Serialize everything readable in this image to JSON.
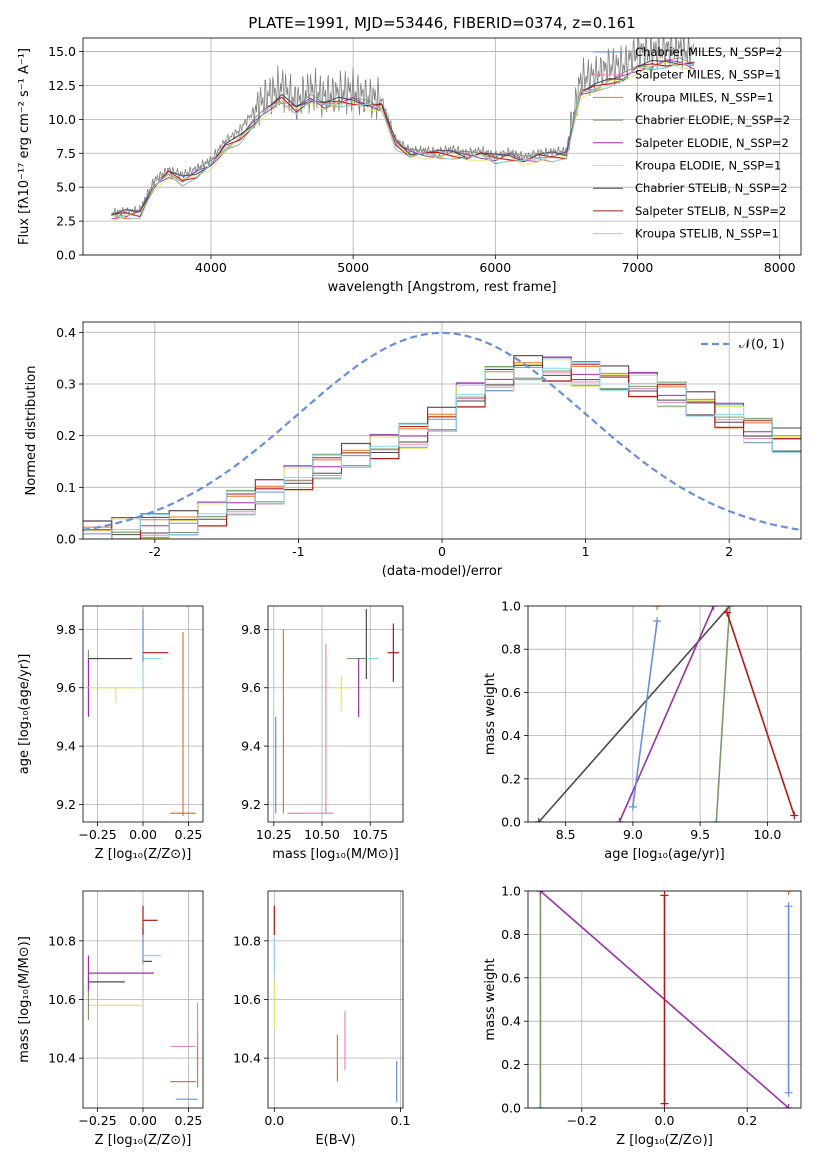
{
  "figure": {
    "title": "PLATE=1991, MJD=53446, FIBERID=0374, z=0.161"
  },
  "colors": {
    "grid": "#b0b0b0",
    "data": "#808080",
    "chabrier_miles": "#6a8fd8",
    "salpeter_miles": "#e888b8",
    "kroupa_miles": "#e8742a",
    "chabrier_elodie": "#7a9a6a",
    "salpeter_elodie": "#9a30a8",
    "kroupa_elodie": "#e0e860",
    "chabrier_stelib": "#4a4a4a",
    "salpeter_stelib": "#b01818",
    "kroupa_stelib": "#88d8e8",
    "normal_curve": "#6a8fd8"
  },
  "chart_data": [
    {
      "id": "spectrum",
      "type": "line",
      "title": "PLATE=1991, MJD=53446, FIBERID=0374, z=0.161",
      "xlabel": "wavelength [Angstrom, rest frame]",
      "ylabel": "Flux [fλ10⁻¹⁷ erg cm⁻² s⁻¹ A⁻¹]",
      "xlim": [
        3100,
        8150
      ],
      "ylim": [
        0,
        16
      ],
      "xticks": [
        4000,
        5000,
        6000,
        7000,
        8000
      ],
      "yticks": [
        0.0,
        2.5,
        5.0,
        7.5,
        10.0,
        12.5,
        15.0
      ],
      "ytick_labels": [
        "0.0",
        "2.5",
        "5.0",
        "7.5",
        "10.0",
        "12.5",
        "15.0"
      ],
      "grid": true,
      "legend": "top-right",
      "x": [
        3300,
        3400,
        3500,
        3600,
        3700,
        3800,
        3900,
        4000,
        4100,
        4200,
        4300,
        4400,
        4500,
        4600,
        4700,
        4800,
        4900,
        5000,
        5100,
        5200,
        5300,
        5400,
        5500,
        5600,
        5700,
        5800,
        5900,
        6000,
        6100,
        6200,
        6300,
        6400,
        6500,
        6600,
        6700,
        6800,
        6900,
        7000,
        7100,
        7200,
        7300,
        7400
      ],
      "data_flux": [
        3.1,
        3.2,
        3.3,
        5.5,
        6.3,
        5.9,
        6.4,
        7.0,
        8.4,
        9.2,
        10.6,
        11.8,
        12.4,
        11.3,
        12.2,
        11.7,
        12.0,
        12.1,
        11.6,
        11.5,
        8.5,
        7.7,
        7.7,
        7.6,
        7.8,
        7.5,
        7.7,
        7.3,
        7.6,
        7.2,
        7.5,
        7.6,
        7.7,
        13.0,
        13.3,
        13.9,
        14.0,
        15.0,
        15.0,
        15.2,
        15.2,
        14.8
      ],
      "model_flux": [
        3.0,
        3.1,
        3.2,
        5.2,
        6.1,
        5.6,
        6.1,
        6.8,
        8.0,
        8.7,
        9.8,
        10.9,
        11.6,
        10.9,
        11.6,
        11.2,
        11.4,
        11.5,
        11.2,
        11.0,
        8.3,
        7.6,
        7.6,
        7.5,
        7.6,
        7.4,
        7.5,
        7.2,
        7.4,
        7.1,
        7.3,
        7.4,
        7.5,
        12.1,
        12.4,
        12.9,
        13.2,
        13.9,
        14.1,
        14.3,
        14.3,
        14.1
      ],
      "series": [
        {
          "name": "Chabrier MILES, N_SSP=2"
        },
        {
          "name": "Salpeter MILES, N_SSP=1"
        },
        {
          "name": "Kroupa MILES, N_SSP=1"
        },
        {
          "name": "Chabrier ELODIE, N_SSP=2"
        },
        {
          "name": "Salpeter ELODIE, N_SSP=2"
        },
        {
          "name": "Kroupa ELODIE, N_SSP=1"
        },
        {
          "name": "Chabrier STELIB, N_SSP=2"
        },
        {
          "name": "Salpeter STELIB, N_SSP=2"
        },
        {
          "name": "Kroupa STELIB, N_SSP=1"
        }
      ]
    },
    {
      "id": "residuals",
      "type": "line",
      "xlabel": "(data-model)/error",
      "ylabel": "Normed distribution",
      "xlim": [
        -2.5,
        2.5
      ],
      "ylim": [
        0,
        0.42
      ],
      "xticks": [
        -2,
        -1,
        0,
        1,
        2
      ],
      "yticks": [
        0.0,
        0.1,
        0.2,
        0.3,
        0.4
      ],
      "ytick_labels": [
        "0.0",
        "0.1",
        "0.2",
        "0.3",
        "0.4"
      ],
      "grid": true,
      "legend": "top-right",
      "curve_label": "𝒩(0, 1)",
      "bin_edges": [
        -2.5,
        -2.3,
        -2.1,
        -1.9,
        -1.7,
        -1.5,
        -1.3,
        -1.1,
        -0.9,
        -0.7,
        -0.5,
        -0.3,
        -0.1,
        0.1,
        0.3,
        0.5,
        0.7,
        0.9,
        1.1,
        1.3,
        1.5,
        1.7,
        1.9,
        2.1,
        2.3,
        2.5
      ],
      "histogram_mean": [
        0.01,
        0.02,
        0.025,
        0.03,
        0.05,
        0.07,
        0.09,
        0.12,
        0.14,
        0.16,
        0.18,
        0.2,
        0.23,
        0.28,
        0.31,
        0.33,
        0.33,
        0.32,
        0.31,
        0.3,
        0.28,
        0.26,
        0.24,
        0.21,
        0.19
      ]
    },
    {
      "id": "age-vs-Z",
      "type": "scatter",
      "xlabel": "Z [log₁₀(Z/Z⊙)]",
      "ylabel": "age  [log₁₀(age/yr)]",
      "xlim": [
        -0.33,
        0.33
      ],
      "ylim": [
        9.14,
        9.88
      ],
      "xticks": [
        -0.25,
        0.0,
        0.25
      ],
      "xtick_labels": [
        "−0.25",
        "0.00",
        "0.25"
      ],
      "yticks": [
        9.2,
        9.4,
        9.6,
        9.8
      ],
      "ytick_labels": [
        "9.2",
        "9.4",
        "9.6",
        "9.8"
      ],
      "grid": true,
      "points": [
        {
          "s": "kroupa_miles",
          "x": 0.22,
          "y": 9.17,
          "xerr": [
            0.07,
            0.07
          ],
          "yerr": [
            0.01,
            0.62
          ]
        },
        {
          "s": "chabrier_elodie",
          "x": -0.3,
          "y": 9.7,
          "xerr": [
            0.0,
            0.06
          ],
          "yerr": [
            0.02,
            0.03
          ]
        },
        {
          "s": "chabrier_stelib",
          "x": -0.18,
          "y": 9.7,
          "xerr": [
            0.12,
            0.12
          ],
          "yerr": [
            0.0,
            0.0
          ]
        },
        {
          "s": "salpeter_elodie",
          "x": -0.3,
          "y": 9.6,
          "xerr": [
            0.0,
            0.0
          ],
          "yerr": [
            0.1,
            0.1
          ]
        },
        {
          "s": "kroupa_elodie",
          "x": -0.15,
          "y": 9.6,
          "xerr": [
            0.15,
            0.15
          ],
          "yerr": [
            0.05,
            0.0
          ]
        },
        {
          "s": "kroupa_stelib",
          "x": 0.0,
          "y": 9.7,
          "xerr": [
            0.0,
            0.1
          ],
          "yerr": [
            0.1,
            0.13
          ]
        },
        {
          "s": "chabrier_miles",
          "x": 0.0,
          "y": 9.72,
          "xerr": [
            0.0,
            0.0
          ],
          "yerr": [
            0.03,
            0.15
          ]
        },
        {
          "s": "salpeter_stelib",
          "x": 0.07,
          "y": 9.72,
          "xerr": [
            0.07,
            0.07
          ],
          "yerr": [
            0.0,
            0.0
          ]
        }
      ]
    },
    {
      "id": "age-vs-mass",
      "type": "scatter",
      "xlabel": "mass [log₁₀(M/M⊙)]",
      "ylabel": "",
      "xlim": [
        10.22,
        10.92
      ],
      "ylim": [
        9.14,
        9.88
      ],
      "xticks": [
        10.25,
        10.5,
        10.75
      ],
      "xtick_labels": [
        "10.25",
        "10.50",
        "10.75"
      ],
      "yticks": [
        9.2,
        9.4,
        9.6,
        9.8
      ],
      "ytick_labels": [
        "9.2",
        "9.4",
        "9.6",
        "9.8"
      ],
      "grid": true,
      "points": [
        {
          "s": "chabrier_miles",
          "x": 10.26,
          "y": 9.34,
          "xerr": [
            0.0,
            0.0
          ],
          "yerr": [
            0.17,
            0.16
          ]
        },
        {
          "s": "kroupa_miles",
          "x": 10.3,
          "y": 9.5,
          "xerr": [
            0.0,
            0.0
          ],
          "yerr": [
            0.33,
            0.3
          ]
        },
        {
          "s": "salpeter_miles",
          "x": 10.44,
          "y": 9.17,
          "xerr": [
            0.12,
            0.12
          ],
          "yerr": [
            0.0,
            0.0
          ]
        },
        {
          "s": "salpeter_miles",
          "x": 10.52,
          "y": 9.45,
          "xerr": [
            0.0,
            0.0
          ],
          "yerr": [
            0.28,
            0.3
          ]
        },
        {
          "s": "chabrier_elodie",
          "x": 10.68,
          "y": 9.7,
          "xerr": [
            0.05,
            0.06
          ],
          "yerr": [
            0.0,
            0.0
          ]
        },
        {
          "s": "kroupa_elodie",
          "x": 10.6,
          "y": 9.6,
          "xerr": [
            0.05,
            0.05
          ],
          "yerr": [
            0.08,
            0.04
          ]
        },
        {
          "s": "salpeter_elodie",
          "x": 10.69,
          "y": 9.6,
          "xerr": [
            0.0,
            0.0
          ],
          "yerr": [
            0.1,
            0.1
          ]
        },
        {
          "s": "chabrier_stelib",
          "x": 10.73,
          "y": 9.75,
          "xerr": [
            0.0,
            0.0
          ],
          "yerr": [
            0.12,
            0.12
          ]
        },
        {
          "s": "kroupa_stelib",
          "x": 10.76,
          "y": 9.7,
          "xerr": [
            0.03,
            0.03
          ],
          "yerr": [
            0.0,
            0.0
          ]
        },
        {
          "s": "salpeter_stelib",
          "x": 10.87,
          "y": 9.72,
          "xerr": [
            0.03,
            0.03
          ],
          "yerr": [
            0.1,
            0.1
          ]
        }
      ]
    },
    {
      "id": "weight-vs-age",
      "type": "line",
      "xlabel": "age  [log₁₀(age/yr)]",
      "ylabel": "mass weight",
      "xlim": [
        8.22,
        10.25
      ],
      "ylim": [
        0,
        1
      ],
      "xticks": [
        8.5,
        9.0,
        9.5,
        10.0
      ],
      "xtick_labels": [
        "8.5",
        "9.0",
        "9.5",
        "10.0"
      ],
      "yticks": [
        0.0,
        0.2,
        0.4,
        0.6,
        0.8,
        1.0
      ],
      "ytick_labels": [
        "0.0",
        "0.2",
        "0.4",
        "0.6",
        "0.8",
        "1.0"
      ],
      "grid": true,
      "lines": [
        {
          "s": "chabrier_stelib",
          "x": [
            8.3,
            9.72
          ],
          "y": [
            0.0,
            1.0
          ]
        },
        {
          "s": "salpeter_elodie",
          "x": [
            8.9,
            9.6
          ],
          "y": [
            0.0,
            1.0
          ]
        },
        {
          "s": "chabrier_miles",
          "x": [
            9.0,
            9.18
          ],
          "y": [
            0.07,
            0.93
          ]
        },
        {
          "s": "chabrier_elodie",
          "x": [
            9.62,
            9.72
          ],
          "y": [
            0.0,
            1.0
          ]
        },
        {
          "s": "salpeter_stelib",
          "x": [
            9.7,
            10.2
          ],
          "y": [
            0.97,
            0.03
          ]
        }
      ],
      "markers": [
        {
          "s": "salpeter_miles",
          "x": 9.18,
          "y": 1.0
        },
        {
          "s": "kroupa_miles",
          "x": 9.18,
          "y": 1.0
        }
      ]
    },
    {
      "id": "mass-vs-Z",
      "type": "scatter",
      "xlabel": "Z [log₁₀(Z/Z⊙)]",
      "ylabel": "mass [log₁₀(M/M⊙)]",
      "xlim": [
        -0.33,
        0.33
      ],
      "ylim": [
        10.23,
        10.97
      ],
      "xticks": [
        -0.25,
        0.0,
        0.25
      ],
      "xtick_labels": [
        "−0.25",
        "0.00",
        "0.25"
      ],
      "yticks": [
        10.4,
        10.6,
        10.8
      ],
      "ytick_labels": [
        "10.4",
        "10.6",
        "10.8"
      ],
      "grid": true,
      "points": [
        {
          "s": "chabrier_miles",
          "x": 0.24,
          "y": 10.26,
          "xerr": [
            0.06,
            0.06
          ],
          "yerr": [
            0.0,
            0.0
          ]
        },
        {
          "s": "kroupa_miles",
          "x": 0.22,
          "y": 10.32,
          "xerr": [
            0.07,
            0.07
          ],
          "yerr": [
            0.0,
            0.0
          ]
        },
        {
          "s": "kroupa_miles",
          "x": 0.3,
          "y": 10.35,
          "xerr": [
            0.0,
            0.0
          ],
          "yerr": [
            0.05,
            0.15
          ]
        },
        {
          "s": "salpeter_miles",
          "x": 0.22,
          "y": 10.44,
          "xerr": [
            0.07,
            0.07
          ],
          "yerr": [
            0.0,
            0.0
          ]
        },
        {
          "s": "salpeter_miles",
          "x": 0.3,
          "y": 10.44,
          "xerr": [
            0.0,
            0.0
          ],
          "yerr": [
            0.0,
            0.15
          ]
        },
        {
          "s": "kroupa_elodie",
          "x": -0.15,
          "y": 10.58,
          "xerr": [
            0.15,
            0.15
          ],
          "yerr": [
            0.0,
            0.0
          ]
        },
        {
          "s": "chabrier_elodie",
          "x": -0.3,
          "y": 10.6,
          "xerr": [
            0.0,
            0.0
          ],
          "yerr": [
            0.07,
            0.07
          ]
        },
        {
          "s": "chabrier_stelib",
          "x": -0.2,
          "y": 10.66,
          "xerr": [
            0.1,
            0.1
          ],
          "yerr": [
            0.0,
            0.0
          ]
        },
        {
          "s": "salpeter_elodie",
          "x": -0.12,
          "y": 10.69,
          "xerr": [
            0.18,
            0.18
          ],
          "yerr": [
            0.0,
            0.0
          ]
        },
        {
          "s": "salpeter_elodie",
          "x": -0.3,
          "y": 10.69,
          "xerr": [
            0.0,
            0.0
          ],
          "yerr": [
            0.06,
            0.06
          ]
        },
        {
          "s": "chabrier_stelib",
          "x": 0.0,
          "y": 10.73,
          "xerr": [
            0.0,
            0.05
          ],
          "yerr": [
            0.0,
            0.0
          ]
        },
        {
          "s": "kroupa_stelib",
          "x": 0.05,
          "y": 10.75,
          "xerr": [
            0.05,
            0.05
          ],
          "yerr": [
            0.0,
            0.0
          ]
        },
        {
          "s": "chabrier_miles",
          "x": 0.0,
          "y": 10.78,
          "xerr": [
            0.0,
            0.0
          ],
          "yerr": [
            0.06,
            0.06
          ]
        },
        {
          "s": "salpeter_stelib",
          "x": 0.04,
          "y": 10.87,
          "xerr": [
            0.04,
            0.04
          ],
          "yerr": [
            0.0,
            0.0
          ]
        },
        {
          "s": "salpeter_stelib",
          "x": 0.0,
          "y": 10.87,
          "xerr": [
            0.0,
            0.0
          ],
          "yerr": [
            0.05,
            0.05
          ]
        }
      ]
    },
    {
      "id": "mass-vs-ebv",
      "type": "scatter",
      "xlabel": "E(B-V)",
      "ylabel": "",
      "xlim": [
        -0.005,
        0.102
      ],
      "ylim": [
        10.23,
        10.97
      ],
      "xticks": [
        0.0,
        0.1
      ],
      "xtick_labels": [
        "0.0",
        "0.1"
      ],
      "yticks": [
        10.4,
        10.6,
        10.8
      ],
      "ytick_labels": [
        "10.4",
        "10.6",
        "10.8"
      ],
      "grid": true,
      "points": [
        {
          "s": "salpeter_stelib",
          "x": 0.0,
          "y": 10.87,
          "xerr": [
            0.0,
            0.0
          ],
          "yerr": [
            0.05,
            0.05
          ]
        },
        {
          "s": "kroupa_stelib",
          "x": 0.0,
          "y": 10.75,
          "xerr": [
            0.0,
            0.0
          ],
          "yerr": [
            0.06,
            0.06
          ]
        },
        {
          "s": "kroupa_elodie",
          "x": 0.0,
          "y": 10.58,
          "xerr": [
            0.0,
            0.0
          ],
          "yerr": [
            0.08,
            0.08
          ]
        },
        {
          "s": "kroupa_miles",
          "x": 0.05,
          "y": 10.4,
          "xerr": [
            0.0,
            0.0
          ],
          "yerr": [
            0.08,
            0.08
          ]
        },
        {
          "s": "salpeter_miles",
          "x": 0.056,
          "y": 10.46,
          "xerr": [
            0.0,
            0.0
          ],
          "yerr": [
            0.1,
            0.1
          ]
        },
        {
          "s": "chabrier_miles",
          "x": 0.097,
          "y": 10.32,
          "xerr": [
            0.0,
            0.0
          ],
          "yerr": [
            0.07,
            0.07
          ]
        }
      ]
    },
    {
      "id": "weight-vs-Z",
      "type": "line",
      "xlabel": "Z [log₁₀(Z/Z⊙)]",
      "ylabel": "mass weight",
      "xlim": [
        -0.33,
        0.33
      ],
      "ylim": [
        0,
        1
      ],
      "xticks": [
        -0.2,
        0.0,
        0.2
      ],
      "xtick_labels": [
        "−0.2",
        "0.0",
        "0.2"
      ],
      "yticks": [
        0.0,
        0.2,
        0.4,
        0.6,
        0.8,
        1.0
      ],
      "ytick_labels": [
        "0.0",
        "0.2",
        "0.4",
        "0.6",
        "0.8",
        "1.0"
      ],
      "grid": true,
      "lines": [
        {
          "s": "chabrier_elodie",
          "x": [
            -0.3,
            -0.3
          ],
          "y": [
            0.0,
            1.0
          ]
        },
        {
          "s": "salpeter_elodie",
          "x": [
            -0.3,
            0.3
          ],
          "y": [
            1.0,
            0.0
          ]
        },
        {
          "s": "salpeter_stelib",
          "x": [
            0.0,
            0.0
          ],
          "y": [
            0.02,
            0.98
          ]
        },
        {
          "s": "chabrier_miles",
          "x": [
            0.3,
            0.3
          ],
          "y": [
            0.07,
            0.93
          ]
        }
      ],
      "markers": [
        {
          "s": "kroupa_miles",
          "x": 0.3,
          "y": 1.0
        }
      ]
    }
  ]
}
